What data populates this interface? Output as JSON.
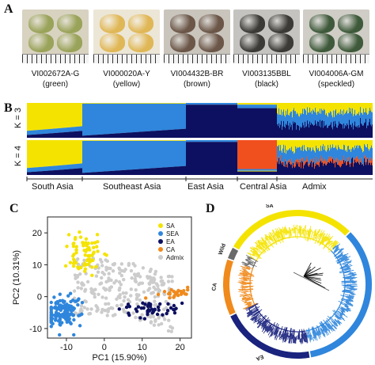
{
  "panels": {
    "a": "A",
    "b": "B",
    "c": "C",
    "d": "D"
  },
  "seeds": [
    {
      "id": "VI002672A-G",
      "color_name": "(green)",
      "bg": "#d8d2c0",
      "seed_color": "#9aa35a"
    },
    {
      "id": "VI000020A-Y",
      "color_name": "(yellow)",
      "bg": "#ece6d6",
      "seed_color": "#e0b756"
    },
    {
      "id": "VI004432B-BR",
      "color_name": "(brown)",
      "bg": "#c9c5bc",
      "seed_color": "#6b5648"
    },
    {
      "id": "VI003135BBL",
      "color_name": "(black)",
      "bg": "#c5c3bf",
      "seed_color": "#3c3a36"
    },
    {
      "id": "VI004006A-GM",
      "color_name": "(speckled)",
      "bg": "#cfcdc6",
      "seed_color": "#3f5a3b"
    }
  ],
  "structure": {
    "k3_label": "K = 3",
    "k4_label": "K = 4",
    "regions": [
      "South Asia",
      "Southeast Asia",
      "East Asia",
      "Central Asia",
      "Admix"
    ]
  },
  "chart_data": [
    {
      "type": "scatter",
      "xlabel": "PC1 (15.90%)",
      "ylabel": "PC2 (10.31%)",
      "xlim": [
        -15,
        23
      ],
      "ylim": [
        -13,
        25
      ],
      "xticks": [
        "-10",
        "0",
        "10",
        "20"
      ],
      "yticks": [
        "-10",
        "0",
        "10",
        "20"
      ],
      "legend_position": "top-right",
      "series": [
        {
          "name": "SA",
          "color": "#f4e300",
          "center": [
            -5.5,
            14
          ],
          "spread": [
            2.2,
            3.5
          ],
          "n": 70
        },
        {
          "name": "SEA",
          "color": "#2f86dc",
          "center": [
            -11,
            -5
          ],
          "spread": [
            2.2,
            2.8
          ],
          "n": 130
        },
        {
          "name": "EA",
          "color": "#0d1060",
          "center": [
            12,
            -3.5
          ],
          "spread": [
            4,
            1.4
          ],
          "n": 45
        },
        {
          "name": "CA",
          "color": "#f08a1c",
          "center": [
            19,
            1
          ],
          "spread": [
            2.5,
            0.8
          ],
          "n": 25
        },
        {
          "name": "Admix",
          "color": "#cccccc",
          "center": [
            0,
            4
          ],
          "spread": [
            7,
            6
          ],
          "n": 260
        }
      ]
    },
    {
      "type": "tree",
      "clades": [
        {
          "name": "SA",
          "color": "#f4e300"
        },
        {
          "name": "SEA",
          "color": "#2f86dc"
        },
        {
          "name": "EA",
          "color": "#1a237e"
        },
        {
          "name": "CA",
          "color": "#f08a1c"
        },
        {
          "name": "Wild",
          "color": "#6a6a6a"
        }
      ]
    }
  ]
}
